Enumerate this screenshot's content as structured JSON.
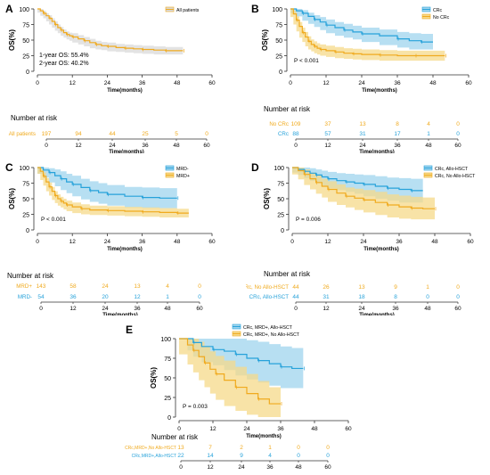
{
  "colors": {
    "orange": "#F0AA1E",
    "blue": "#27A2DA",
    "orange_band": "#F6D98A",
    "blue_band": "#9FD4EE",
    "gray_band": "#D9D9D9"
  },
  "common": {
    "ylabel": "OS(%)",
    "xlabel": "Time(months)",
    "risk_title": "Number at risk"
  },
  "chart_data": [
    {
      "panel": "A",
      "type": "line",
      "xlim": [
        0,
        60
      ],
      "ylim": [
        0,
        100
      ],
      "xticks": [
        0,
        12,
        24,
        36,
        48,
        60
      ],
      "yticks": [
        0,
        25,
        50,
        75,
        100
      ],
      "legend": [
        "All patients"
      ],
      "annotations": [
        "1-year OS: 55.4%",
        "2-year OS: 40.2%"
      ],
      "series": [
        {
          "name": "All patients",
          "color": "orange",
          "band": "gray",
          "x": [
            0,
            1,
            2,
            3,
            4,
            5,
            6,
            7,
            8,
            9,
            10,
            11,
            12,
            14,
            16,
            18,
            20,
            22,
            24,
            27,
            30,
            33,
            36,
            40,
            44,
            48,
            50
          ],
          "y": [
            100,
            97,
            93,
            89,
            85,
            80,
            75,
            70,
            66,
            62,
            59,
            57,
            55,
            52,
            49,
            46,
            43,
            41,
            40,
            38,
            37,
            36,
            35,
            34,
            33,
            33,
            33
          ],
          "lo": [
            100,
            94,
            89,
            85,
            80,
            75,
            70,
            65,
            61,
            57,
            54,
            51,
            49,
            46,
            43,
            40,
            37,
            35,
            34,
            32,
            31,
            30,
            29,
            28,
            27,
            27,
            27
          ],
          "hi": [
            100,
            100,
            97,
            93,
            90,
            85,
            80,
            75,
            71,
            67,
            64,
            62,
            61,
            58,
            55,
            52,
            49,
            47,
            46,
            44,
            43,
            42,
            41,
            40,
            39,
            39,
            39
          ]
        }
      ],
      "risk": {
        "rows": [
          {
            "label": "All patients",
            "color": "orange",
            "values": [
              "197",
              "94",
              "44",
              "25",
              "5",
              "0"
            ]
          }
        ]
      }
    },
    {
      "panel": "B",
      "type": "line",
      "xlim": [
        0,
        60
      ],
      "ylim": [
        0,
        100
      ],
      "xticks": [
        0,
        12,
        24,
        36,
        48,
        60
      ],
      "yticks": [
        0,
        25,
        50,
        75,
        100
      ],
      "legend": [
        "CRc",
        "No CRc"
      ],
      "pvalue": "P < 0.001",
      "series": [
        {
          "name": "CRc",
          "color": "blue",
          "band": "blue",
          "x": [
            0,
            2,
            4,
            6,
            8,
            10,
            12,
            15,
            18,
            21,
            24,
            30,
            36,
            40,
            44,
            48
          ],
          "y": [
            100,
            97,
            93,
            88,
            83,
            79,
            74,
            70,
            66,
            63,
            60,
            57,
            52,
            49,
            47,
            47
          ],
          "lo": [
            100,
            93,
            88,
            81,
            76,
            71,
            66,
            61,
            57,
            54,
            51,
            47,
            42,
            38,
            35,
            35
          ],
          "hi": [
            100,
            100,
            98,
            94,
            90,
            87,
            83,
            79,
            76,
            73,
            70,
            67,
            63,
            61,
            60,
            60
          ]
        },
        {
          "name": "No CRc",
          "color": "orange",
          "band": "orange",
          "x": [
            0,
            1,
            2,
            3,
            4,
            5,
            6,
            7,
            8,
            9,
            10,
            12,
            15,
            18,
            21,
            24,
            30,
            36,
            42,
            48,
            52
          ],
          "y": [
            100,
            92,
            82,
            72,
            62,
            55,
            48,
            43,
            40,
            37,
            35,
            33,
            31,
            29,
            28,
            27,
            26,
            25,
            25,
            25,
            25
          ],
          "lo": [
            100,
            87,
            75,
            64,
            54,
            47,
            40,
            35,
            32,
            29,
            27,
            25,
            23,
            21,
            20,
            19,
            18,
            17,
            17,
            17,
            17
          ],
          "hi": [
            100,
            97,
            88,
            79,
            70,
            63,
            56,
            51,
            48,
            45,
            43,
            41,
            39,
            37,
            36,
            35,
            34,
            33,
            33,
            33,
            33
          ]
        }
      ],
      "risk": {
        "rows": [
          {
            "label": "No CRc",
            "color": "orange",
            "values": [
              "109",
              "37",
              "13",
              "8",
              "4",
              "0"
            ]
          },
          {
            "label": "CRc",
            "color": "blue",
            "values": [
              "88",
              "57",
              "31",
              "17",
              "1",
              "0"
            ]
          }
        ]
      }
    },
    {
      "panel": "C",
      "type": "line",
      "xlim": [
        0,
        60
      ],
      "ylim": [
        0,
        100
      ],
      "xticks": [
        0,
        12,
        24,
        36,
        48,
        60
      ],
      "yticks": [
        0,
        25,
        50,
        75,
        100
      ],
      "legend": [
        "MRD-",
        "MRD+"
      ],
      "pvalue": "P < 0.001",
      "series": [
        {
          "name": "MRD-",
          "color": "blue",
          "band": "blue",
          "x": [
            0,
            2,
            4,
            6,
            8,
            10,
            12,
            15,
            18,
            21,
            24,
            30,
            36,
            42,
            48
          ],
          "y": [
            100,
            96,
            92,
            87,
            82,
            77,
            73,
            68,
            63,
            60,
            57,
            54,
            52,
            51,
            51
          ],
          "lo": [
            100,
            90,
            84,
            76,
            70,
            64,
            59,
            54,
            49,
            45,
            42,
            39,
            36,
            35,
            35
          ],
          "hi": [
            100,
            100,
            99,
            97,
            94,
            90,
            87,
            82,
            78,
            75,
            72,
            69,
            68,
            67,
            67
          ]
        },
        {
          "name": "MRD+",
          "color": "orange",
          "band": "orange",
          "x": [
            0,
            1,
            2,
            3,
            4,
            5,
            6,
            7,
            8,
            9,
            10,
            12,
            15,
            18,
            24,
            30,
            36,
            42,
            48,
            52
          ],
          "y": [
            100,
            94,
            86,
            77,
            69,
            62,
            55,
            50,
            46,
            43,
            40,
            37,
            34,
            32,
            31,
            30,
            29,
            28,
            27,
            27
          ],
          "lo": [
            100,
            90,
            80,
            71,
            62,
            55,
            48,
            43,
            39,
            36,
            33,
            30,
            27,
            25,
            24,
            23,
            22,
            21,
            20,
            20
          ],
          "hi": [
            100,
            98,
            92,
            83,
            76,
            69,
            62,
            57,
            53,
            50,
            47,
            44,
            41,
            39,
            38,
            37,
            36,
            35,
            34,
            34
          ]
        }
      ],
      "risk": {
        "rows": [
          {
            "label": "MRD+",
            "color": "orange",
            "values": [
              "143",
              "58",
              "24",
              "13",
              "4",
              "0"
            ]
          },
          {
            "label": "MRD-",
            "color": "blue",
            "values": [
              "54",
              "36",
              "20",
              "12",
              "1",
              "0"
            ]
          }
        ]
      }
    },
    {
      "panel": "D",
      "type": "line",
      "xlim": [
        0,
        60
      ],
      "ylim": [
        0,
        100
      ],
      "xticks": [
        0,
        12,
        24,
        36,
        48,
        60
      ],
      "yticks": [
        0,
        25,
        50,
        75,
        100
      ],
      "legend": [
        "CRc, Allo-HSCT",
        "CRc, No Allo-HSCT"
      ],
      "pvalue": "P = 0.006",
      "series": [
        {
          "name": "CRc, Allo-HSCT",
          "color": "blue",
          "band": "blue",
          "x": [
            0,
            2,
            4,
            6,
            8,
            10,
            12,
            15,
            18,
            21,
            24,
            28,
            32,
            36,
            40,
            44
          ],
          "y": [
            100,
            97,
            94,
            91,
            88,
            85,
            82,
            79,
            77,
            75,
            73,
            70,
            67,
            65,
            63,
            63
          ],
          "lo": [
            100,
            92,
            88,
            83,
            79,
            75,
            71,
            67,
            64,
            61,
            58,
            54,
            50,
            47,
            44,
            44
          ],
          "hi": [
            100,
            100,
            100,
            99,
            97,
            95,
            93,
            91,
            90,
            89,
            88,
            86,
            84,
            83,
            82,
            82
          ]
        },
        {
          "name": "CRc, No Allo-HSCT",
          "color": "orange",
          "band": "orange",
          "x": [
            0,
            2,
            4,
            6,
            8,
            10,
            12,
            15,
            18,
            21,
            24,
            28,
            32,
            36,
            40,
            44,
            48
          ],
          "y": [
            100,
            95,
            89,
            82,
            76,
            70,
            65,
            59,
            54,
            51,
            48,
            44,
            40,
            37,
            35,
            34,
            34
          ],
          "lo": [
            100,
            89,
            81,
            72,
            65,
            58,
            52,
            45,
            40,
            36,
            32,
            28,
            24,
            20,
            18,
            17,
            17
          ],
          "hi": [
            100,
            100,
            97,
            92,
            87,
            82,
            78,
            73,
            68,
            66,
            64,
            61,
            57,
            55,
            53,
            52,
            52
          ]
        }
      ],
      "risk": {
        "rows": [
          {
            "label": "CRc, No Allo-HSCT",
            "color": "orange",
            "values": [
              "44",
              "26",
              "13",
              "9",
              "1",
              "0"
            ]
          },
          {
            "label": "CRc, Allo-HSCT",
            "color": "blue",
            "values": [
              "44",
              "31",
              "18",
              "8",
              "0",
              "0"
            ]
          }
        ]
      }
    },
    {
      "panel": "E",
      "type": "line",
      "xlim": [
        0,
        60
      ],
      "ylim": [
        0,
        100
      ],
      "xticks": [
        0,
        12,
        24,
        36,
        48,
        60
      ],
      "yticks": [
        0,
        25,
        50,
        75,
        100
      ],
      "legend": [
        "CRc, MRD+, Allo-HSCT",
        "CRc, MRD+, No Allo-HSCT"
      ],
      "pvalue": "P = 0.003",
      "series": [
        {
          "name": "CRc, MRD+, Allo-HSCT",
          "color": "blue",
          "band": "blue",
          "x": [
            0,
            3,
            5,
            8,
            12,
            16,
            20,
            24,
            28,
            32,
            36,
            40,
            44
          ],
          "y": [
            100,
            100,
            95,
            90,
            86,
            84,
            80,
            75,
            72,
            68,
            64,
            62,
            62
          ],
          "lo": [
            100,
            100,
            85,
            77,
            70,
            66,
            60,
            53,
            48,
            44,
            40,
            37,
            37
          ],
          "hi": [
            100,
            100,
            100,
            100,
            100,
            100,
            100,
            98,
            96,
            93,
            90,
            88,
            88
          ]
        },
        {
          "name": "CRc, MRD+, No Allo-HSCT",
          "color": "orange",
          "band": "orange",
          "x": [
            0,
            3,
            5,
            7,
            9,
            11,
            13,
            16,
            20,
            24,
            28,
            32,
            36
          ],
          "y": [
            100,
            92,
            85,
            77,
            69,
            61,
            55,
            47,
            38,
            30,
            23,
            17,
            17
          ],
          "lo": [
            100,
            80,
            67,
            57,
            47,
            38,
            30,
            22,
            14,
            8,
            3,
            0,
            0
          ],
          "hi": [
            100,
            100,
            100,
            96,
            90,
            84,
            78,
            72,
            64,
            55,
            46,
            38,
            38
          ]
        }
      ],
      "risk": {
        "rows": [
          {
            "label": "CRc,MRD+,No Allo-HSCT",
            "color": "orange",
            "values": [
              "13",
              "7",
              "2",
              "1",
              "0",
              "0"
            ]
          },
          {
            "label": "CRc,MRD+,Allo-HSCT",
            "color": "blue",
            "values": [
              "22",
              "14",
              "9",
              "4",
              "0",
              "0"
            ]
          }
        ]
      }
    }
  ]
}
